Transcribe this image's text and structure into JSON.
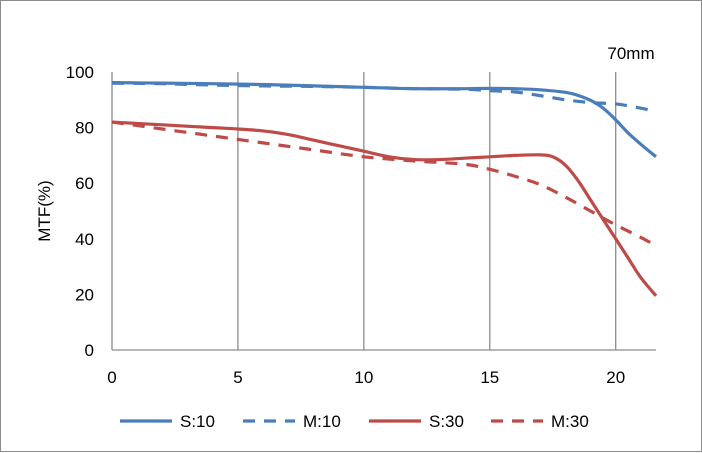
{
  "chart_data": {
    "type": "line",
    "title": "70mm",
    "xlabel": "",
    "ylabel": "MTF(%)",
    "xlim": [
      0,
      21.6
    ],
    "ylim": [
      0,
      100
    ],
    "xticks": [
      "0",
      "5",
      "10",
      "15",
      "20"
    ],
    "yticks": [
      "0",
      "20",
      "40",
      "60",
      "80",
      "100"
    ],
    "grid": "vertical",
    "legend": "bottom",
    "series": [
      {
        "name": "S:10",
        "color": "#4a7ebb",
        "dash": "solid",
        "x": [
          0,
          2,
          4,
          6,
          8,
          10,
          12,
          14,
          15,
          16,
          17,
          18,
          18.5,
          19,
          19.5,
          20,
          20.5,
          21,
          21.6
        ],
        "y": [
          96.2,
          96.0,
          95.8,
          95.5,
          95.0,
          94.5,
          94.0,
          94.0,
          94.1,
          94.0,
          93.6,
          92.7,
          91.6,
          89.8,
          87.0,
          82.8,
          78.0,
          74.0,
          69.5
        ]
      },
      {
        "name": "M:10",
        "color": "#4a7ebb",
        "dash": "dashed",
        "x": [
          0,
          2,
          4,
          6,
          8,
          10,
          12,
          14,
          15,
          16,
          17,
          18,
          19,
          20,
          21,
          21.6
        ],
        "y": [
          96.0,
          95.8,
          95.3,
          95.0,
          94.8,
          94.5,
          94.0,
          93.8,
          93.3,
          92.8,
          91.5,
          90.0,
          89.0,
          88.5,
          87.0,
          85.8
        ]
      },
      {
        "name": "S:30",
        "color": "#be4b48",
        "dash": "solid",
        "x": [
          0,
          2,
          4,
          5,
          6,
          7,
          8,
          9,
          10,
          11,
          12,
          13,
          14,
          15,
          16,
          17,
          17.5,
          18,
          18.5,
          19,
          19.5,
          20,
          20.5,
          21,
          21.6
        ],
        "y": [
          82.0,
          81.0,
          80.0,
          79.5,
          78.8,
          77.5,
          75.5,
          73.5,
          71.5,
          69.5,
          68.5,
          68.5,
          69.0,
          69.5,
          70.0,
          70.2,
          69.5,
          66.5,
          61.0,
          54.0,
          47.0,
          40.0,
          33.0,
          26.0,
          19.5
        ]
      },
      {
        "name": "M:30",
        "color": "#be4b48",
        "dash": "dashed",
        "x": [
          0,
          2,
          4,
          6,
          8,
          10,
          12,
          14,
          15,
          16,
          17,
          18,
          19,
          20,
          21,
          21.6
        ],
        "y": [
          82.0,
          79.5,
          77.0,
          74.5,
          72.0,
          69.5,
          68.0,
          66.8,
          65.0,
          62.5,
          59.5,
          55.0,
          50.0,
          45.0,
          40.5,
          37.5
        ]
      }
    ]
  }
}
